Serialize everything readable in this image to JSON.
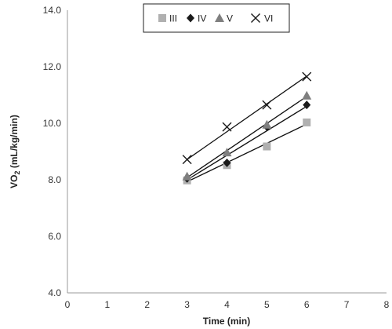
{
  "chart_data": {
    "type": "scatter",
    "title": "",
    "xlabel": "Time (min)",
    "ylabel_main": "VO",
    "ylabel_sub": "2",
    "ylabel_rest": " (mL/kg/min)",
    "xlim": [
      0,
      8
    ],
    "ylim": [
      4.0,
      14.0
    ],
    "x_ticks": [
      "0",
      "1",
      "2",
      "3",
      "4",
      "5",
      "6",
      "7",
      "8"
    ],
    "y_ticks": [
      "4.0",
      "6.0",
      "8.0",
      "10.0",
      "12.0",
      "14.0"
    ],
    "grid": false,
    "legend_position": "top-center",
    "series": [
      {
        "name": "III",
        "marker": "square",
        "color": "#b0b0b0",
        "x": [
          3,
          4,
          5,
          6
        ],
        "y": [
          7.98,
          8.52,
          9.18,
          10.03
        ],
        "trend": [
          [
            3,
            7.93
          ],
          [
            6,
            9.97
          ]
        ]
      },
      {
        "name": "IV",
        "marker": "diamond",
        "color": "#1a1a1a",
        "x": [
          3,
          4,
          5,
          6
        ],
        "y": [
          8.05,
          8.6,
          9.88,
          10.65
        ],
        "trend": [
          [
            3,
            8.0
          ],
          [
            6,
            10.6
          ]
        ]
      },
      {
        "name": "V",
        "marker": "triangle",
        "color": "#7f7f7f",
        "x": [
          3,
          4,
          5,
          6
        ],
        "y": [
          8.12,
          8.97,
          9.95,
          10.98
        ],
        "trend": [
          [
            3,
            8.08
          ],
          [
            6,
            10.95
          ]
        ]
      },
      {
        "name": "VI",
        "marker": "x",
        "color": "#1a1a1a",
        "x": [
          3,
          4,
          5,
          6
        ],
        "y": [
          8.72,
          9.87,
          10.65,
          11.65
        ],
        "trend": [
          [
            3,
            8.72
          ],
          [
            6,
            11.67
          ]
        ]
      }
    ]
  }
}
